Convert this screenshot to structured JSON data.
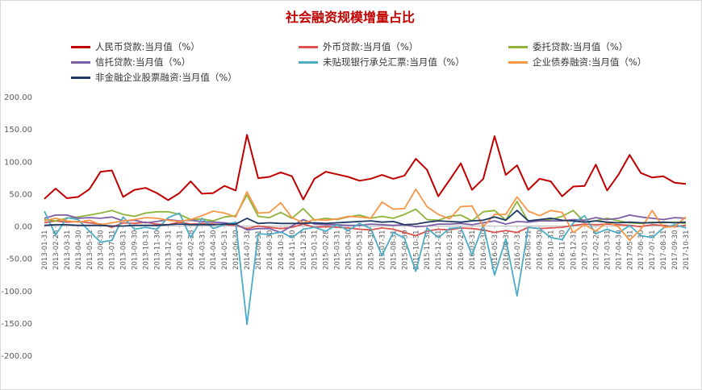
{
  "chart_data": {
    "type": "line",
    "title": "社会融资规模增量占比",
    "ylim": [
      -200,
      200
    ],
    "yticks": [
      "200.00",
      "150.00",
      "100.00",
      "50.00",
      "0.00",
      "-50.00",
      "-100.00",
      "-150.00",
      "-200.00"
    ],
    "xticks": [
      "2013-01-31",
      "2013-02-28",
      "2013-03-31",
      "2013-04-30",
      "2013-05-31",
      "2013-06-30",
      "2013-07-31",
      "2013-08-31",
      "2013-09-30",
      "2013-10-31",
      "2013-11-30",
      "2013-12-31",
      "2014-01-31",
      "2014-02-28",
      "2014-03-31",
      "2014-04-30",
      "2014-05-31",
      "2014-06-30",
      "2014-07-31",
      "2014-08-31",
      "2014-09-30",
      "2014-10-31",
      "2014-11-30",
      "2014-12-31",
      "2015-01-31",
      "2015-02-28",
      "2015-03-31",
      "2015-04-30",
      "2015-05-31",
      "2015-06-30",
      "2015-07-31",
      "2015-08-31",
      "2015-09-30",
      "2015-10-31",
      "2015-11-30",
      "2015-12-31",
      "2016-01-31",
      "2016-02-29",
      "2016-03-31",
      "2016-04-30",
      "2016-05-31",
      "2016-06-30",
      "2016-07-31",
      "2016-08-31",
      "2016-09-30",
      "2016-10-31",
      "2016-11-30",
      "2016-12-31",
      "2017-01-31",
      "2017-02-28",
      "2017-03-31",
      "2017-04-30",
      "2017-05-31",
      "2017-06-30",
      "2017-07-31",
      "2017-08-31",
      "2017-09-30",
      "2017-10-31"
    ],
    "legend_position": "top",
    "grid": false,
    "series": [
      {
        "name": "人民币贷款:当月值（%）",
        "color": "#c00000",
        "values": [
          42,
          58,
          43,
          45,
          57,
          84,
          86,
          45,
          56,
          59,
          51,
          40,
          51,
          69,
          50,
          51,
          62,
          55,
          141,
          74,
          76,
          83,
          77,
          41,
          73,
          84,
          80,
          76,
          70,
          73,
          79,
          73,
          78,
          104,
          87,
          46,
          71,
          97,
          56,
          73,
          139,
          79,
          94,
          56,
          73,
          69,
          46,
          61,
          62,
          95,
          55,
          79,
          110,
          82,
          75,
          77,
          67,
          65
        ]
      },
      {
        "name": "外币贷款:当月值（%）",
        "color": "#d9534f",
        "values": [
          5,
          8,
          6,
          7,
          5,
          3,
          -2,
          5,
          4,
          6,
          3,
          2,
          6,
          3,
          4,
          3,
          2,
          1,
          -4,
          0,
          -2,
          -4,
          -2,
          3,
          -2,
          -1,
          -2,
          -3,
          -5,
          -6,
          -3,
          -5,
          -10,
          -15,
          -8,
          -5,
          -6,
          -3,
          -4,
          -6,
          -10,
          -7,
          -10,
          -2,
          -4,
          -3,
          -2,
          1,
          3,
          2,
          3,
          2,
          1,
          -1,
          2,
          1,
          -1,
          1
        ]
      },
      {
        "name": "委托贷款:当月值（%）",
        "color": "#8db33b",
        "values": [
          10,
          8,
          12,
          14,
          17,
          20,
          24,
          18,
          15,
          20,
          22,
          22,
          18,
          10,
          11,
          8,
          14,
          16,
          48,
          15,
          13,
          21,
          12,
          27,
          9,
          12,
          10,
          14,
          17,
          12,
          15,
          12,
          18,
          26,
          10,
          9,
          15,
          17,
          8,
          22,
          24,
          9,
          38,
          7,
          9,
          10,
          15,
          24,
          6,
          8,
          12,
          8,
          5,
          4,
          6,
          5,
          6,
          4
        ]
      },
      {
        "name": "信托贷款:当月值（%）",
        "color": "#7f5ea8",
        "values": [
          12,
          17,
          17,
          12,
          13,
          12,
          14,
          8,
          9,
          5,
          7,
          10,
          8,
          9,
          7,
          6,
          5,
          3,
          -6,
          -4,
          -4,
          -10,
          0,
          10,
          3,
          2,
          2,
          1,
          1,
          3,
          2,
          1,
          2,
          -1,
          0,
          3,
          3,
          4,
          2,
          5,
          8,
          3,
          7,
          6,
          8,
          8,
          8,
          10,
          9,
          13,
          10,
          12,
          17,
          14,
          12,
          10,
          13,
          12
        ]
      },
      {
        "name": "未贴现银行承兑汇票:当月值（%）",
        "color": "#4bacc6",
        "values": [
          23,
          -14,
          13,
          10,
          -8,
          -25,
          -22,
          14,
          -5,
          -2,
          -5,
          13,
          20,
          -18,
          12,
          -4,
          2,
          6,
          -152,
          -12,
          -13,
          -9,
          -18,
          -5,
          -2,
          -8,
          2,
          -7,
          4,
          -4,
          -46,
          -10,
          -19,
          -70,
          -3,
          -18,
          -4,
          -2,
          -45,
          2,
          -76,
          -20,
          -108,
          -2,
          -4,
          -18,
          -21,
          5,
          16,
          -12,
          -5,
          -11,
          1,
          -15,
          -18,
          -3,
          2,
          -3
        ]
      },
      {
        "name": "企业债券融资:当月值（%）",
        "color": "#f79646",
        "values": [
          8,
          12,
          8,
          6,
          9,
          2,
          5,
          8,
          10,
          13,
          12,
          9,
          7,
          10,
          16,
          23,
          20,
          14,
          53,
          20,
          21,
          36,
          13,
          5,
          10,
          9,
          11,
          15,
          14,
          12,
          37,
          26,
          27,
          57,
          30,
          18,
          11,
          30,
          31,
          -1,
          18,
          18,
          45,
          23,
          16,
          24,
          21,
          -10,
          2,
          -8,
          6,
          -1,
          -22,
          -5,
          24,
          -2,
          -1,
          14
        ]
      },
      {
        "name": "非金融企业股票融资:当月值（%）",
        "color": "#1f3864",
        "values": [
          1,
          2,
          2,
          1,
          1,
          1,
          0,
          0,
          1,
          1,
          1,
          2,
          3,
          2,
          2,
          2,
          3,
          3,
          12,
          4,
          5,
          4,
          4,
          4,
          5,
          4,
          5,
          6,
          7,
          8,
          6,
          7,
          2,
          3,
          6,
          8,
          7,
          6,
          8,
          9,
          14,
          9,
          24,
          8,
          10,
          12,
          9,
          8,
          6,
          8,
          6,
          5,
          6,
          5,
          5,
          6,
          5,
          6
        ]
      }
    ]
  }
}
